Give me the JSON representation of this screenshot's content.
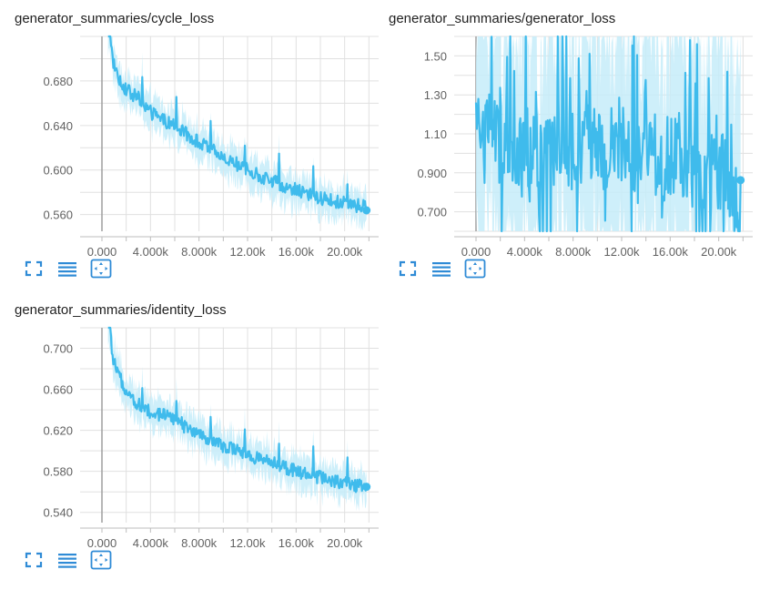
{
  "charts": [
    {
      "title": "generator_summaries/cycle_loss",
      "toolbar": [
        "fullscreen-icon",
        "list-icon",
        "fit-domain-icon"
      ]
    },
    {
      "title": "generator_summaries/generator_loss",
      "toolbar": [
        "fullscreen-icon",
        "list-icon",
        "fit-domain-icon"
      ]
    },
    {
      "title": "generator_summaries/identity_loss",
      "toolbar": [
        "fullscreen-icon",
        "list-icon",
        "fit-domain-icon"
      ]
    }
  ],
  "colors": {
    "line": "#3fbbec",
    "raw": "#c6ecf9",
    "grid": "#e0e0e0",
    "zero_axis": "#9e9e9e",
    "icon": "#2f8bd6"
  },
  "chart_data": [
    {
      "type": "line",
      "title": "generator_summaries/cycle_loss",
      "xlabel": "",
      "ylabel": "",
      "xlim": [
        -1800,
        22800
      ],
      "ylim": [
        0.545,
        0.72
      ],
      "x_ticks": [
        0,
        4000,
        8000,
        12000,
        16000,
        20000
      ],
      "x_tick_labels": [
        "0.000",
        "4.000k",
        "8.000k",
        "12.00k",
        "16.00k",
        "20.00k"
      ],
      "y_ticks": [
        0.56,
        0.6,
        0.64,
        0.68
      ],
      "y_tick_labels": [
        "0.560",
        "0.600",
        "0.640",
        "0.680"
      ],
      "grid": true,
      "series": [
        {
          "x": [
            500,
            1000,
            1500,
            2000,
            2500,
            3000,
            4000,
            5000,
            6000,
            7000,
            8000,
            9000,
            10000,
            11000,
            12000,
            13000,
            14000,
            15000,
            16000,
            17000,
            18000,
            19000,
            20000,
            21000,
            21800
          ],
          "y": [
            0.71,
            0.695,
            0.68,
            0.672,
            0.668,
            0.665,
            0.652,
            0.645,
            0.64,
            0.632,
            0.625,
            0.618,
            0.612,
            0.606,
            0.6,
            0.595,
            0.59,
            0.586,
            0.582,
            0.578,
            0.575,
            0.572,
            0.57,
            0.568,
            0.567
          ]
        }
      ]
    },
    {
      "type": "line",
      "title": "generator_summaries/generator_loss",
      "xlabel": "",
      "ylabel": "",
      "xlim": [
        -1800,
        22800
      ],
      "ylim": [
        0.6,
        1.6
      ],
      "x_ticks": [
        0,
        4000,
        8000,
        12000,
        16000,
        20000
      ],
      "x_tick_labels": [
        "0.000",
        "4.000k",
        "8.000k",
        "12.00k",
        "16.00k",
        "20.00k"
      ],
      "y_ticks": [
        0.7,
        0.9,
        1.1,
        1.3,
        1.5
      ],
      "y_tick_labels": [
        "0.700",
        "0.900",
        "1.10",
        "1.30",
        "1.50"
      ],
      "grid": true,
      "series": [
        {
          "x": [
            0,
            1000,
            2000,
            3000,
            4000,
            5000,
            6000,
            7000,
            8000,
            9000,
            10000,
            11000,
            12000,
            13000,
            14000,
            15000,
            16000,
            17000,
            18000,
            19000,
            20000,
            21000,
            21800
          ],
          "y": [
            1.15,
            1.1,
            1.05,
            1.05,
            1.03,
            1.05,
            1.04,
            1.06,
            1.03,
            1.05,
            1.04,
            1.02,
            1.03,
            1.0,
            1.0,
            0.98,
            0.97,
            0.95,
            0.94,
            0.93,
            0.9,
            0.88,
            0.66
          ]
        }
      ]
    },
    {
      "type": "line",
      "title": "generator_summaries/identity_loss",
      "xlabel": "",
      "ylabel": "",
      "xlim": [
        -1800,
        22800
      ],
      "ylim": [
        0.53,
        0.72
      ],
      "x_ticks": [
        0,
        4000,
        8000,
        12000,
        16000,
        20000
      ],
      "x_tick_labels": [
        "0.000",
        "4.000k",
        "8.000k",
        "12.00k",
        "16.00k",
        "20.00k"
      ],
      "y_ticks": [
        0.54,
        0.58,
        0.62,
        0.66,
        0.7
      ],
      "y_tick_labels": [
        "0.540",
        "0.580",
        "0.620",
        "0.660",
        "0.700"
      ],
      "grid": true,
      "series": [
        {
          "x": [
            500,
            1000,
            1500,
            2000,
            2500,
            3000,
            4000,
            5000,
            6000,
            7000,
            8000,
            9000,
            10000,
            11000,
            12000,
            13000,
            14000,
            15000,
            16000,
            17000,
            18000,
            19000,
            20000,
            21000,
            21800
          ],
          "y": [
            0.705,
            0.685,
            0.67,
            0.66,
            0.652,
            0.645,
            0.638,
            0.635,
            0.632,
            0.622,
            0.615,
            0.61,
            0.605,
            0.6,
            0.596,
            0.592,
            0.588,
            0.584,
            0.58,
            0.577,
            0.574,
            0.571,
            0.568,
            0.566,
            0.565
          ]
        }
      ]
    }
  ]
}
